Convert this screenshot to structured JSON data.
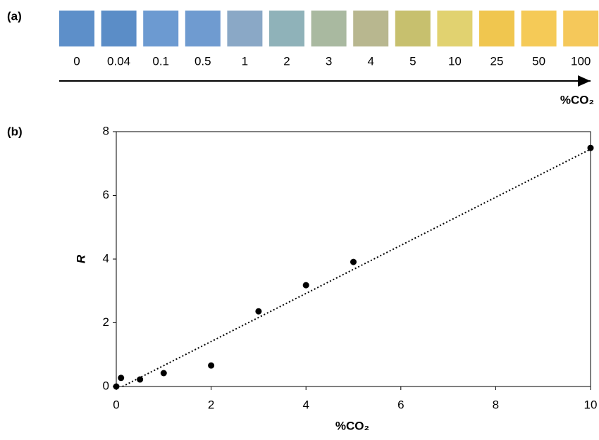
{
  "chart_data": [
    {
      "type": "swatch",
      "panel_label": "(a)",
      "categories": [
        "0",
        "0.04",
        "0.1",
        "0.5",
        "1",
        "2",
        "3",
        "4",
        "5",
        "10",
        "25",
        "50",
        "100"
      ],
      "colors": [
        "#5d8fc9",
        "#5b8dc7",
        "#6c9ad1",
        "#6f9bd0",
        "#8aa8c6",
        "#8fb2b9",
        "#a9b9a0",
        "#b8b78f",
        "#c7c06e",
        "#e1d270",
        "#f0c64f",
        "#f5ca57",
        "#f5c85a"
      ],
      "axis_label": "%CO₂"
    },
    {
      "type": "scatter",
      "panel_label": "(b)",
      "x": [
        0,
        0.1,
        0.5,
        1,
        2,
        3,
        4,
        5,
        10
      ],
      "values": [
        0,
        0.27,
        0.22,
        0.42,
        0.66,
        2.36,
        3.18,
        3.91,
        7.49
      ],
      "color": "#000000",
      "trendline": {
        "x": [
          0.13,
          10
        ],
        "values": [
          0,
          7.45
        ],
        "style": "dotted"
      },
      "xlim": [
        0,
        10
      ],
      "ylim": [
        0,
        8
      ],
      "xticks": [
        0,
        2,
        4,
        6,
        8,
        10
      ],
      "yticks": [
        0,
        2,
        4,
        6,
        8
      ],
      "xlabel": "%CO₂",
      "ylabel": "R"
    }
  ]
}
